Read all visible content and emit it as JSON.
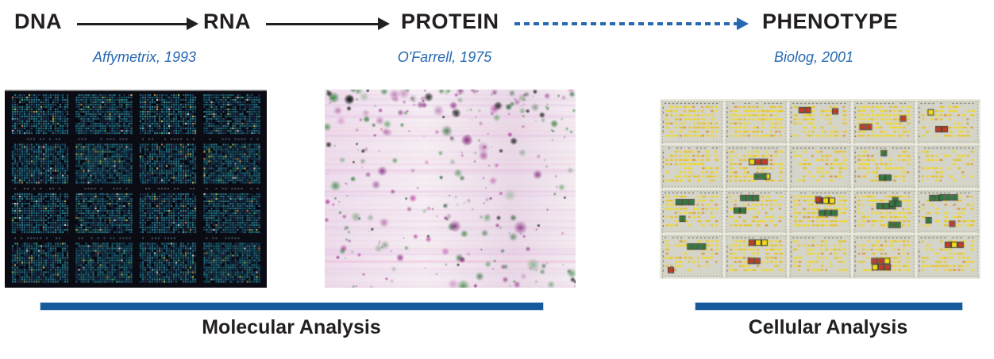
{
  "page": {
    "background": "#ffffff"
  },
  "flow": {
    "nodes": [
      {
        "id": "dna",
        "label": "DNA"
      },
      {
        "id": "rna",
        "label": "RNA"
      },
      {
        "id": "protein",
        "label": "PROTEIN"
      },
      {
        "id": "phenotype",
        "label": "PHENOTYPE"
      }
    ],
    "arrows": [
      {
        "from": "DNA",
        "to": "RNA",
        "style": "solid",
        "color": "#231f20"
      },
      {
        "from": "RNA",
        "to": "PROTEIN",
        "style": "solid",
        "color": "#231f20"
      },
      {
        "from": "PROTEIN",
        "to": "PHENOTYPE",
        "style": "dashed",
        "color": "#2668b2"
      }
    ]
  },
  "citations": [
    {
      "label": "Affymetrix, 1993"
    },
    {
      "label": "O'Farrell, 1975"
    },
    {
      "label": "Biolog, 2001"
    }
  ],
  "figures": [
    {
      "name": "dna-microarray-image",
      "kind": "microarray",
      "palette": {
        "bg": "#0a0b13",
        "edge": "#c9c9c9",
        "teal": [
          "#1e7386",
          "#27879b",
          "#1b5f78",
          "#2e93a6"
        ],
        "dim": [
          "#1b2f52",
          "#22406b",
          "#16263f",
          "#2a3a64"
        ],
        "bright": [
          "#e3e06b",
          "#f2f2f2",
          "#58c97e",
          "#d79a4a",
          "#8fd2e2",
          "#c4da5a"
        ],
        "dark": "#05060c",
        "caption": "rgba(140,160,185,0.55)"
      }
    },
    {
      "name": "protein-2d-gel-image",
      "kind": "gel",
      "palette": {
        "base": [
          "#eedcec",
          "#f6eef4",
          "#ead9e8",
          "#f4ecf2"
        ],
        "spots": [
          [
            176,
            44,
            150
          ],
          [
            122,
            28,
            118
          ],
          [
            52,
            128,
            62
          ],
          [
            28,
            92,
            44
          ],
          [
            150,
            60,
            140
          ],
          [
            60,
            140,
            70
          ]
        ],
        "darkspot": [
          22,
          24,
          22
        ]
      }
    },
    {
      "name": "phenotype-microarray-image",
      "kind": "biolog",
      "palette": {
        "bg": "#eceadd",
        "plate": "#d5d4c8",
        "perf": "#8a897e",
        "tick": "#55544c",
        "yellow": "#f4da14",
        "yellow2": "#e9c310",
        "orange": "#dd8f25",
        "boxRed": "#c13b28",
        "boxGreen": "#2f7a3f",
        "boxBorder": "#3c3b35"
      }
    }
  ],
  "analysis_groups": [
    {
      "label": "Molecular Analysis",
      "bar_color": "#165a9d"
    },
    {
      "label": "Cellular Analysis",
      "bar_color": "#165a9d"
    }
  ],
  "colors": {
    "accent_blue": "#2668b2",
    "text_black": "#231f20",
    "bar_blue": "#165a9d"
  }
}
